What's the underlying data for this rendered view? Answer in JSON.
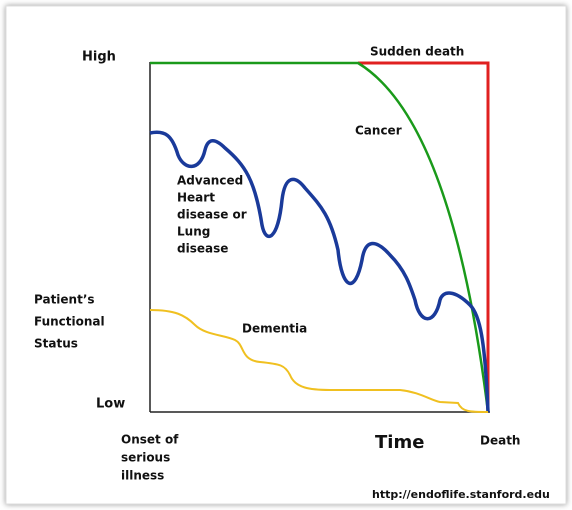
{
  "y_axis": {
    "high": "High",
    "low": "Low",
    "title": [
      "Patient’s",
      "Functional",
      "Status"
    ]
  },
  "x_axis": {
    "start": [
      "Onset of",
      "serious",
      "illness"
    ],
    "title": "Time",
    "end": "Death"
  },
  "curves": {
    "sudden_death": "Sudden death",
    "cancer": "Cancer",
    "organ_failure": [
      "Advanced",
      "Heart",
      "disease or",
      "Lung",
      "disease"
    ],
    "dementia": "Dementia"
  },
  "source": "http://endoflife.stanford.edu"
}
